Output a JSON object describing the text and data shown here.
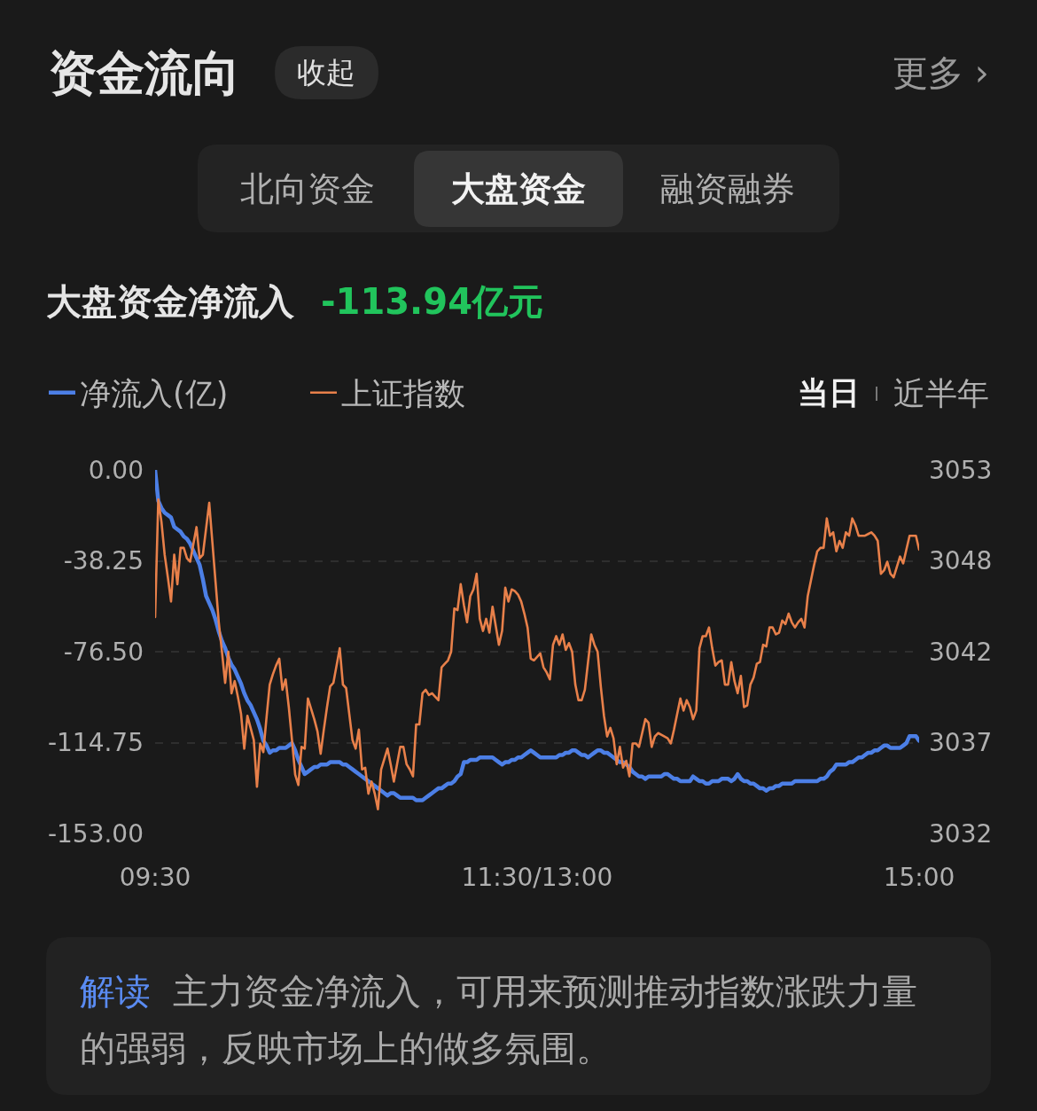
{
  "chart_data": {
    "type": "line",
    "title": "资金流向",
    "subtitle": "大盘资金净流入",
    "annotations": [
      "收起",
      "更多 ›",
      "北向资金",
      "大盘资金",
      "融资融券",
      "-113.94亿元",
      "当日",
      "近半年",
      "解读 主力资金净流入，可用来预测推动指数涨跌力量的强弱，反映市场上的做多氛围。"
    ],
    "categories": [
      "09:30",
      null,
      null,
      null,
      null,
      null,
      null,
      null,
      null,
      null,
      null,
      null,
      null,
      null,
      null,
      null,
      null,
      null,
      null,
      null,
      null,
      null,
      null,
      null,
      null,
      null,
      null,
      null,
      null,
      null,
      null,
      null,
      null,
      null,
      null,
      null,
      null,
      null,
      null,
      null,
      null,
      null,
      null,
      null,
      null,
      null,
      null,
      null,
      null,
      null,
      null,
      null,
      null,
      null,
      null,
      null,
      null,
      null,
      null,
      null,
      null,
      null,
      null,
      null,
      null,
      null,
      null,
      null,
      null,
      null,
      null,
      null,
      null,
      null,
      null,
      null,
      null,
      null,
      null,
      null,
      null,
      null,
      null,
      null,
      null,
      null,
      null,
      null,
      null,
      null,
      null,
      null,
      null,
      null,
      null,
      null,
      null,
      null,
      null,
      null,
      null,
      null,
      null,
      null,
      null,
      null,
      null,
      null,
      null,
      null,
      null,
      null,
      null,
      null,
      null,
      null,
      null,
      null,
      null,
      null,
      "11:30/13:00",
      null,
      null,
      null,
      null,
      null,
      null,
      null,
      null,
      null,
      null,
      null,
      null,
      null,
      null,
      null,
      null,
      null,
      null,
      null,
      null,
      null,
      null,
      null,
      null,
      null,
      null,
      null,
      null,
      null,
      null,
      null,
      null,
      null,
      null,
      null,
      null,
      null,
      null,
      null,
      null,
      null,
      null,
      null,
      null,
      null,
      null,
      null,
      null,
      null,
      null,
      null,
      null,
      null,
      null,
      null,
      null,
      null,
      null,
      null,
      null,
      null,
      null,
      null,
      null,
      null,
      null,
      null,
      null,
      null,
      null,
      null,
      null,
      null,
      null,
      null,
      null,
      null,
      null,
      null,
      null,
      null,
      null,
      null,
      null,
      null,
      null,
      null,
      null,
      null,
      null,
      null,
      null,
      null,
      null,
      null,
      null,
      null,
      null,
      null,
      null,
      null,
      null,
      null,
      null,
      null,
      null,
      null,
      null,
      null,
      null,
      null,
      null,
      null,
      null,
      null,
      null,
      null,
      null,
      null,
      "15:00"
    ],
    "ylim": [
      -153,
      0
    ],
    "yticks": [
      {
        "value": 0,
        "label": "0.00"
      },
      -38.25,
      {
        "value": -76.5,
        "label": "-76.50"
      },
      -114.75,
      {
        "value": -153,
        "label": "-153.00"
      }
    ],
    "y2lim": [
      3032,
      3053
    ],
    "y2ticks": [
      3053,
      {
        "value": 3047.75,
        "label": "3048"
      },
      {
        "value": 3042.5,
        "label": "3042"
      },
      {
        "value": 3037.25,
        "label": "3037"
      },
      3032
    ],
    "grid": "y",
    "legend": "top left",
    "series": [
      {
        "name": "净流入(亿)",
        "color": "#4c7fe6",
        "values": [
          0,
          -13,
          -16,
          -18,
          -19,
          -20,
          -24,
          -25,
          -26,
          -28,
          -29,
          -31,
          -34,
          -37,
          -40,
          -46,
          -53,
          -56,
          -59,
          -63,
          -68,
          -72,
          -75,
          -79,
          -82,
          -84,
          -87,
          -90,
          -94,
          -97,
          -99,
          -102,
          -105,
          -109,
          -114,
          -116,
          -119,
          -118,
          -118,
          -117,
          -117,
          -117,
          -116,
          -115,
          -118,
          -122,
          -125,
          -128,
          -127,
          -126,
          -125,
          -125,
          -124,
          -124,
          -124,
          -123,
          -123,
          -123,
          -123,
          -124,
          -124,
          -125,
          -126,
          -127,
          -128,
          -129,
          -130,
          -131,
          -132,
          -133,
          -134,
          -135,
          -136,
          -137,
          -136,
          -136,
          -137,
          -138,
          -138,
          -138,
          -138,
          -138,
          -139,
          -139,
          -139,
          -138,
          -137,
          -136,
          -135,
          -134,
          -134,
          -133,
          -132,
          -132,
          -131,
          -129,
          -128,
          -123,
          -123,
          -122,
          -122,
          -122,
          -121,
          -121,
          -121,
          -121,
          -121,
          -122,
          -123,
          -124,
          -123,
          -123,
          -122,
          -122,
          -121,
          -121,
          -120,
          -119,
          -118,
          -119,
          -120,
          -121,
          -121,
          -121,
          -121,
          -121,
          -121,
          -120,
          -120,
          -119,
          -119,
          -118,
          -118,
          -119,
          -120,
          -120,
          -121,
          -120,
          -119,
          -118,
          -118,
          -119,
          -119,
          -120,
          -121,
          -122,
          -123,
          -123,
          -124,
          -125,
          -127,
          -128,
          -129,
          -129,
          -130,
          -129,
          -129,
          -129,
          -129,
          -129,
          -128,
          -128,
          -129,
          -130,
          -130,
          -131,
          -131,
          -131,
          -131,
          -129,
          -130,
          -131,
          -131,
          -132,
          -132,
          -131,
          -131,
          -131,
          -130,
          -130,
          -130,
          -131,
          -130,
          -128,
          -130,
          -131,
          -131,
          -132,
          -132,
          -133,
          -134,
          -134,
          -135,
          -134,
          -134,
          -133,
          -133,
          -132,
          -132,
          -132,
          -132,
          -131,
          -131,
          -131,
          -131,
          -131,
          -131,
          -131,
          -131,
          -130,
          -130,
          -129,
          -127,
          -126,
          -124,
          -124,
          -124,
          -124,
          -123,
          -123,
          -122,
          -121,
          -121,
          -120,
          -119,
          -119,
          -118,
          -118,
          -117,
          -116,
          -116,
          -117,
          -117,
          -117,
          -117,
          -116,
          -115,
          -112,
          -112,
          -112,
          -114
        ]
      },
      {
        "name": "上证指数",
        "axis": "y2",
        "color": "#e8804a",
        "values": [
          3044.5,
          3051.3,
          3050.0,
          3048.1,
          3046.8,
          3045.4,
          3048.1,
          3046.4,
          3048.5,
          3048.5,
          3047.9,
          3047.7,
          3048.7,
          3049.7,
          3047.9,
          3048.1,
          3049.6,
          3051.1,
          3048.8,
          3046.5,
          3044.2,
          3042.5,
          3040.7,
          3042.5,
          3040.1,
          3040.8,
          3039.9,
          3038.9,
          3036.9,
          3038.8,
          3038.1,
          3037.4,
          3034.7,
          3037.2,
          3036.7,
          3038.7,
          3040.6,
          3041.2,
          3041.7,
          3042.1,
          3040.3,
          3040.9,
          3039.3,
          3037.4,
          3035.4,
          3034.8,
          3037.0,
          3036.9,
          3039.8,
          3039.2,
          3038.6,
          3037.9,
          3036.6,
          3038.0,
          3039.3,
          3040.5,
          3040.7,
          3041.7,
          3042.7,
          3040.6,
          3040.4,
          3038.9,
          3037.4,
          3036.9,
          3038.0,
          3035.7,
          3035.8,
          3034.3,
          3035.0,
          3034.3,
          3033.4,
          3035.7,
          3036.3,
          3036.9,
          3036.0,
          3035.0,
          3036.0,
          3037.0,
          3037.0,
          3036.0,
          3035.7,
          3035.3,
          3038.3,
          3038.3,
          3040.1,
          3040.3,
          3040.0,
          3040.1,
          3039.9,
          3039.7,
          3041.6,
          3041.8,
          3042.0,
          3042.5,
          3045.0,
          3044.9,
          3046.4,
          3045.2,
          3044.2,
          3045.7,
          3046.1,
          3047.0,
          3044.4,
          3043.7,
          3044.4,
          3043.6,
          3045.1,
          3044.0,
          3042.9,
          3043.7,
          3046.2,
          3045.4,
          3046.1,
          3046.0,
          3045.8,
          3045.4,
          3044.7,
          3043.9,
          3042.1,
          3042.0,
          3042.2,
          3042.4,
          3041.6,
          3041.3,
          3040.9,
          3042.9,
          3043.4,
          3042.9,
          3043.5,
          3042.6,
          3043.0,
          3042.5,
          3040.6,
          3039.7,
          3039.7,
          3040.3,
          3041.9,
          3043.5,
          3042.9,
          3042.5,
          3040.5,
          3038.8,
          3037.6,
          3038.1,
          3037.5,
          3036.0,
          3037.0,
          3035.8,
          3036.2,
          3035.3,
          3037.2,
          3037.2,
          3037.0,
          3037.8,
          3038.6,
          3038.4,
          3037.0,
          3037.6,
          3037.8,
          3037.7,
          3037.6,
          3037.5,
          3037.2,
          3038.0,
          3038.9,
          3039.8,
          3039.1,
          3039.7,
          3039.3,
          3038.6,
          3039.1,
          3042.7,
          3043.4,
          3043.4,
          3043.9,
          3042.7,
          3041.7,
          3041.9,
          3042.0,
          3040.6,
          3040.6,
          3041.9,
          3040.8,
          3040.1,
          3041.1,
          3039.3,
          3039.4,
          3040.6,
          3041.0,
          3041.8,
          3041.9,
          3042.9,
          3042.8,
          3043.9,
          3043.9,
          3043.5,
          3043.6,
          3044.3,
          3044.1,
          3044.7,
          3044.2,
          3043.9,
          3044.2,
          3044.4,
          3043.9,
          3045.7,
          3046.6,
          3047.5,
          3048.3,
          3048.5,
          3048.5,
          3050.2,
          3049.2,
          3049.4,
          3048.3,
          3048.9,
          3048.5,
          3049.4,
          3049.2,
          3050.2,
          3049.8,
          3049.2,
          3049.2,
          3049.2,
          3049.3,
          3049.4,
          3049.2,
          3048.9,
          3047.0,
          3047.2,
          3047.7,
          3047.0,
          3046.8,
          3047.4,
          3048.0,
          3047.6,
          3048.4,
          3049.2,
          3049.2,
          3049.2,
          3048.4
        ]
      }
    ]
  }
}
